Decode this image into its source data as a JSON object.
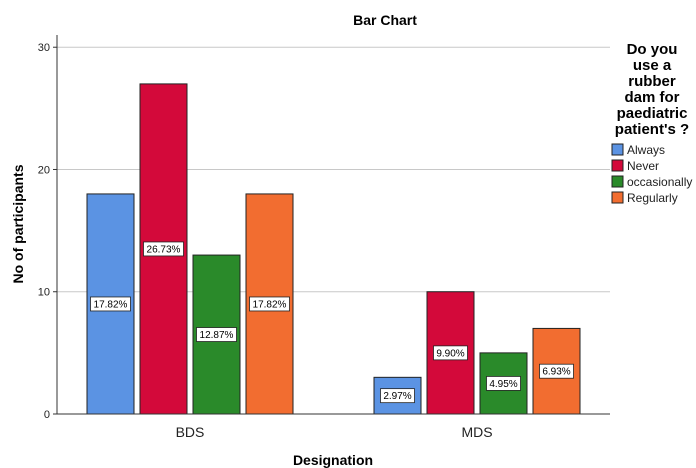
{
  "chart_data": {
    "type": "bar",
    "title": "Bar Chart",
    "xlabel": "Designation",
    "ylabel": "No of participants",
    "categories": [
      "BDS",
      "MDS"
    ],
    "ylim": [
      0,
      31
    ],
    "yticks": [
      0,
      10,
      20,
      30
    ],
    "grid": true,
    "legend_placement": "right",
    "legend_title": [
      "Do you",
      "use a",
      "rubber",
      "dam for",
      "paediatric",
      "patient's ?"
    ],
    "series": [
      {
        "name": "Always",
        "color": "#5b93e3",
        "values": [
          18,
          3
        ],
        "labels": [
          "17.82%",
          "2.97%"
        ]
      },
      {
        "name": "Never",
        "color": "#d3093a",
        "values": [
          27,
          10
        ],
        "labels": [
          "26.73%",
          "9.90%"
        ]
      },
      {
        "name": "occasionally",
        "color": "#2a8a2a",
        "values": [
          13,
          5
        ],
        "labels": [
          "12.87%",
          "4.95%"
        ]
      },
      {
        "name": "Regularly",
        "color": "#f26d30",
        "values": [
          18,
          7
        ],
        "labels": [
          "17.82%",
          "6.93%"
        ]
      }
    ]
  }
}
